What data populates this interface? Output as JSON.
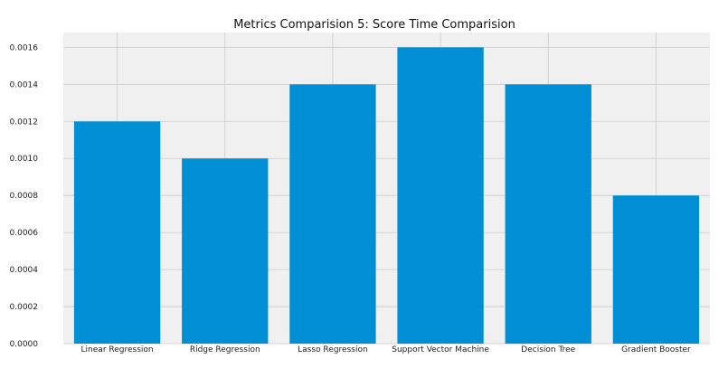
{
  "chart_data": {
    "type": "bar",
    "title": "Metrics Comparision 5: Score Time Comparision",
    "xlabel": "",
    "ylabel": "",
    "categories": [
      "Linear Regression",
      "Ridge Regression",
      "Lasso Regression",
      "Support Vector Machine",
      "Decision Tree",
      "Gradient Booster"
    ],
    "values": [
      0.0012,
      0.001,
      0.0014,
      0.0016,
      0.0014,
      0.0008
    ],
    "yticks": [
      "0.0000",
      "0.0002",
      "0.0004",
      "0.0006",
      "0.0008",
      "0.0010",
      "0.0012",
      "0.0014",
      "0.0016"
    ],
    "ylim": [
      0,
      0.00168
    ],
    "grid": true,
    "legend": "none",
    "colors": {
      "bar": "#008fd5",
      "plot_background": "#f0f0f0",
      "grid": "#cbcbcb",
      "figure_background": "#ffffff"
    }
  }
}
